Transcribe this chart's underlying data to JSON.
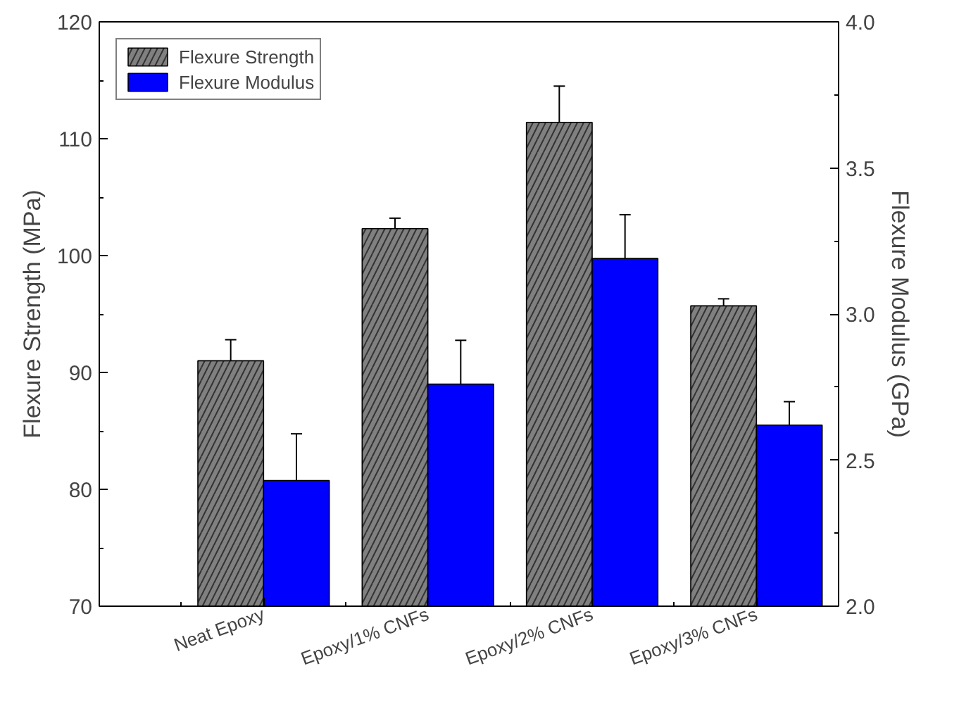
{
  "chart_data": {
    "type": "bar",
    "categories": [
      "Neat Epoxy",
      "Epoxy/1% CNFs",
      "Epoxy/2% CNFs",
      "Epoxy/3% CNFs"
    ],
    "ylabel": "Flexure Strength (MPa)",
    "y2label": "Flexure Modulus (GPa)",
    "ylim": [
      70,
      120
    ],
    "yticks": [
      70,
      80,
      90,
      100,
      110,
      120
    ],
    "y2lim": [
      2.0,
      4.0
    ],
    "y2ticks": [
      {
        "value": 2.0,
        "label": "2.0"
      },
      {
        "value": 2.5,
        "label": "2.5"
      },
      {
        "value": 3.0,
        "label": "3.0"
      },
      {
        "value": 3.5,
        "label": "3.5"
      },
      {
        "value": 4.0,
        "label": "4.0"
      }
    ],
    "legend": "top left",
    "grid": false,
    "series": [
      {
        "name": "Flexure Strength",
        "color": "#808080",
        "values": [
          91.0,
          102.3,
          111.4,
          95.7
        ],
        "errors": [
          1.8,
          0.9,
          3.1,
          0.6
        ]
      },
      {
        "name": "Flexure Modulus",
        "color": "#0000ff",
        "axis": "y2",
        "values": [
          2.43,
          2.76,
          3.19,
          2.62
        ],
        "errors": [
          0.16,
          0.15,
          0.15,
          0.08
        ]
      }
    ]
  }
}
